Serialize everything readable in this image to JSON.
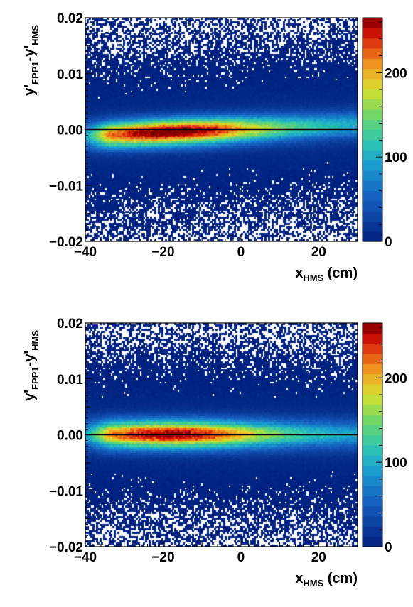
{
  "chart_data": [
    {
      "type": "heatmap",
      "panel": "top",
      "xlabel": {
        "main": "x",
        "sub": "HMS",
        "unit": " (cm)"
      },
      "ylabel": {
        "p1": "y",
        "s1": "FPP1",
        "p2": "-y",
        "s2": "HMS"
      },
      "xlim": [
        -40,
        30
      ],
      "ylim": [
        -0.02,
        0.02
      ],
      "x_ticks": [
        {
          "v": -40,
          "label": "−40"
        },
        {
          "v": -20,
          "label": "−20"
        },
        {
          "v": 0,
          "label": "0"
        },
        {
          "v": 20,
          "label": "20"
        }
      ],
      "y_ticks": [
        {
          "v": 0.02,
          "label": "0.02"
        },
        {
          "v": 0.01,
          "label": "0.01"
        },
        {
          "v": 0.0,
          "label": "0.00"
        },
        {
          "v": -0.01,
          "label": "−0.01"
        },
        {
          "v": -0.02,
          "label": "−0.02"
        }
      ],
      "z_range": [
        0,
        265
      ],
      "z_ticks": [
        {
          "v": 0,
          "label": "0"
        },
        {
          "v": 100,
          "label": "100"
        },
        {
          "v": 200,
          "label": "200"
        }
      ],
      "reference_line_y": 0.0,
      "band": {
        "center_left": -0.0012,
        "center_right": 0.0008,
        "peak_x": -18,
        "peak_counts": 255,
        "sigma_y": 0.0016,
        "background_counts": 30
      }
    },
    {
      "type": "heatmap",
      "panel": "bottom",
      "xlabel": {
        "main": "x",
        "sub": "HMS",
        "unit": " (cm)"
      },
      "ylabel": {
        "p1": "y",
        "s1": "FPP1",
        "p2": "-y",
        "s2": "HMS"
      },
      "xlim": [
        -40,
        30
      ],
      "ylim": [
        -0.02,
        0.02
      ],
      "x_ticks": [
        {
          "v": -40,
          "label": "−40"
        },
        {
          "v": -20,
          "label": "−20"
        },
        {
          "v": 0,
          "label": "0"
        },
        {
          "v": 20,
          "label": "20"
        }
      ],
      "y_ticks": [
        {
          "v": 0.02,
          "label": "0.02"
        },
        {
          "v": 0.01,
          "label": "0.01"
        },
        {
          "v": 0.0,
          "label": "0.00"
        },
        {
          "v": -0.01,
          "label": "−0.01"
        },
        {
          "v": -0.02,
          "label": "−0.02"
        }
      ],
      "z_range": [
        0,
        265
      ],
      "z_ticks": [
        {
          "v": 0,
          "label": "0"
        },
        {
          "v": 100,
          "label": "100"
        },
        {
          "v": 200,
          "label": "200"
        }
      ],
      "reference_line_y": 0.0,
      "band": {
        "center_left": 0.0,
        "center_right": 0.0,
        "peak_x": -18,
        "peak_counts": 240,
        "sigma_y": 0.0017,
        "background_counts": 30
      }
    }
  ],
  "palette": [
    "#00207f",
    "#ffffff",
    "#0a3a9a",
    "#1560c0",
    "#1aa0d0",
    "#30c8b0",
    "#7ad860",
    "#d8e030",
    "#f0a020",
    "#e04010",
    "#c00000",
    "#7a0000"
  ]
}
